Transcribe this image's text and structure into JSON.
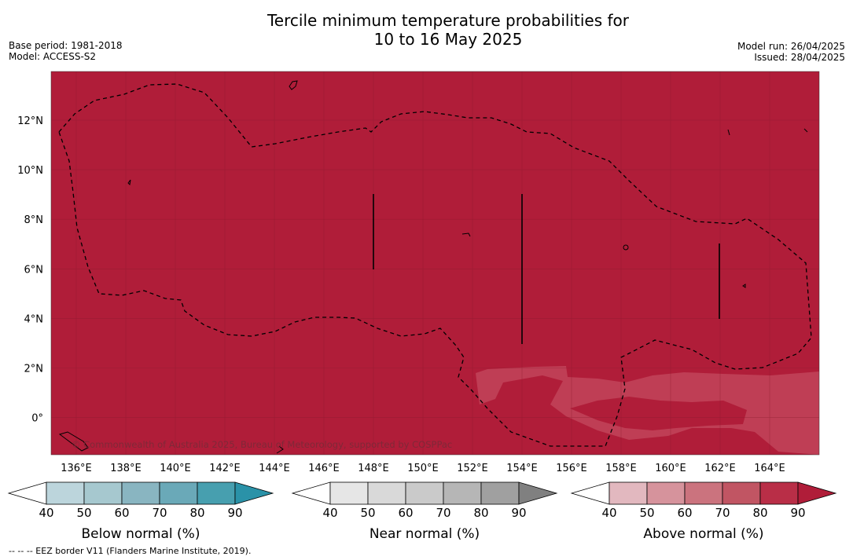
{
  "title_line1": "Tercile minimum temperature probabilities for",
  "title_line2": "10 to 16 May 2025",
  "base_period": "Base period: 1981-2018",
  "model": "Model: ACCESS-S2",
  "model_run": "Model run: 26/04/2025",
  "issued": "Issued: 28/04/2025",
  "copyright": "© Commonwealth of Australia 2025, Bureau of Meteorology, supported by COSPPac",
  "footnote": "--  --  -- EEZ border V11 (Flanders Marine Institute, 2019).",
  "map": {
    "lat_labels": [
      "12°N",
      "10°N",
      "8°N",
      "6°N",
      "4°N",
      "2°N",
      "0°"
    ],
    "lon_labels": [
      "136°E",
      "138°E",
      "140°E",
      "142°E",
      "144°E",
      "146°E",
      "148°E",
      "150°E",
      "152°E",
      "154°E",
      "156°E",
      "158°E",
      "160°E",
      "162°E",
      "164°E"
    ],
    "background_category": "Above normal",
    "background_level": "80-90"
  },
  "legends": [
    {
      "name": "Below normal (%)",
      "ticks": [
        "40",
        "50",
        "60",
        "70",
        "80",
        "90"
      ],
      "colors": [
        "#ffffff",
        "#bcd5dc",
        "#a6c8cf",
        "#89b5c1",
        "#6aa9b8",
        "#479faf",
        "#2a92a8"
      ]
    },
    {
      "name": "Near normal (%)",
      "ticks": [
        "40",
        "50",
        "60",
        "70",
        "80",
        "90"
      ],
      "colors": [
        "#ffffff",
        "#e6e6e6",
        "#d9d9d9",
        "#cacaca",
        "#b6b6b6",
        "#a0a0a0",
        "#808080"
      ]
    },
    {
      "name": "Above normal (%)",
      "ticks": [
        "40",
        "50",
        "60",
        "70",
        "80",
        "90"
      ],
      "colors": [
        "#ffffff",
        "#e2b8bf",
        "#d6939c",
        "#cb737e",
        "#c15563",
        "#b92e47",
        "#b01d39"
      ]
    }
  ]
}
